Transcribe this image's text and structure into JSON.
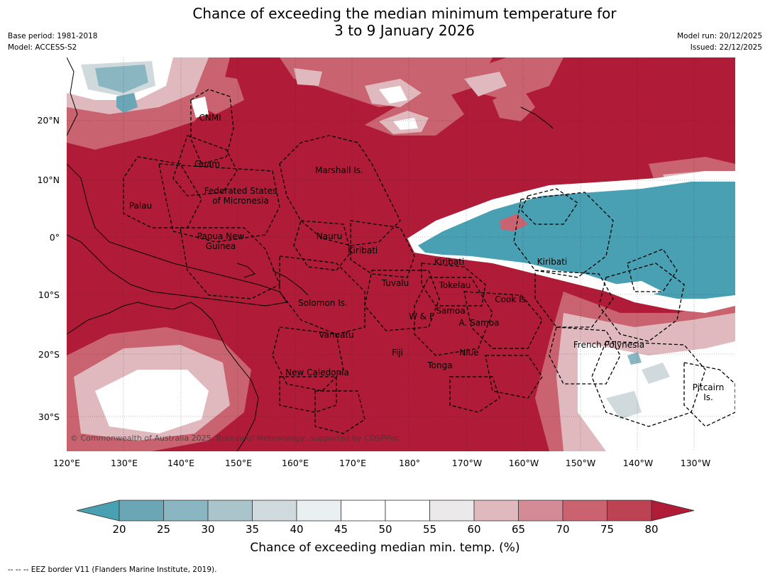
{
  "title": {
    "line1": "Chance of exceeding the median minimum temperature for",
    "line2": "3 to 9 January 2026"
  },
  "meta_left": {
    "base_period": "Base period: 1981-2018",
    "model": "Model: ACCESS-S2"
  },
  "meta_right": {
    "model_run": "Model run: 20/12/2025",
    "issued": "Issued: 22/12/2025"
  },
  "map": {
    "lat_ticks": [
      "20°N",
      "10°N",
      "0°",
      "10°S",
      "20°S",
      "30°S"
    ],
    "lon_ticks": [
      "120°E",
      "130°E",
      "140°E",
      "150°E",
      "160°E",
      "170°E",
      "180°",
      "170°W",
      "160°W",
      "150°W",
      "140°W",
      "130°W"
    ],
    "copyright": "© Commonwealth of Australia 2025, Bureau of Meteorology, supported by COSPPac",
    "places": [
      {
        "id": "cnmi",
        "lines": [
          "CNMI"
        ]
      },
      {
        "id": "guam",
        "lines": [
          "Guam"
        ]
      },
      {
        "id": "marshall",
        "lines": [
          "Marshall Is."
        ]
      },
      {
        "id": "fsm",
        "lines": [
          "Federated States",
          "of Micronesia"
        ]
      },
      {
        "id": "palau",
        "lines": [
          "Palau"
        ]
      },
      {
        "id": "png",
        "lines": [
          "Papua New",
          "Guinea"
        ]
      },
      {
        "id": "nauru",
        "lines": [
          "Nauru"
        ]
      },
      {
        "id": "kiribati-w",
        "lines": [
          "Kiribati"
        ]
      },
      {
        "id": "kiribati-c",
        "lines": [
          "Kiribati"
        ]
      },
      {
        "id": "kiribati-e",
        "lines": [
          "Kiribati"
        ]
      },
      {
        "id": "tuvalu",
        "lines": [
          "Tuvalu"
        ]
      },
      {
        "id": "tokelau",
        "lines": [
          "Tokelau"
        ]
      },
      {
        "id": "cook",
        "lines": [
          "Cook Is."
        ]
      },
      {
        "id": "solomon",
        "lines": [
          "Solomon Is."
        ]
      },
      {
        "id": "samoa",
        "lines": [
          "Samoa"
        ]
      },
      {
        "id": "wf",
        "lines": [
          "W & F"
        ]
      },
      {
        "id": "asamoa",
        "lines": [
          "A. Samoa"
        ]
      },
      {
        "id": "vanuatu",
        "lines": [
          "Vanuatu"
        ]
      },
      {
        "id": "fiji",
        "lines": [
          "Fiji"
        ]
      },
      {
        "id": "niue",
        "lines": [
          "Niue"
        ]
      },
      {
        "id": "frpoly",
        "lines": [
          "French Polynesia"
        ]
      },
      {
        "id": "tonga",
        "lines": [
          "Tonga"
        ]
      },
      {
        "id": "newcal",
        "lines": [
          "New Caledonia"
        ]
      },
      {
        "id": "pitcairn",
        "lines": [
          "Pitcairn",
          "Is."
        ]
      }
    ]
  },
  "colorbar": {
    "ticks": [
      "20",
      "25",
      "30",
      "35",
      "40",
      "45",
      "50",
      "55",
      "60",
      "65",
      "70",
      "75",
      "80"
    ],
    "colors": [
      "#4aa0b3",
      "#6aa6b5",
      "#8ab6c2",
      "#a9c5cb",
      "#d0d9dc",
      "#eaf0f2",
      "#ffffff",
      "#ffffff",
      "#ebe9ea",
      "#e0b9bf",
      "#d48b95",
      "#c9636f",
      "#bd4352",
      "#b01c37"
    ],
    "label": "Chance of exceeding median min. temp. (%)"
  },
  "footnote": "--  --  -- EEZ border V11 (Flanders Marine Institute, 2019)."
}
